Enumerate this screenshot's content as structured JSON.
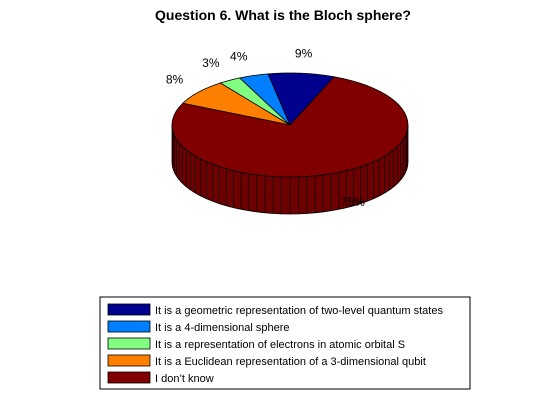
{
  "chart_data": {
    "type": "pie",
    "title": "Question 6. What is the Bloch sphere?",
    "style": "3d",
    "legend_position": "bottom",
    "slices": [
      {
        "label": "It is a geometric representation of two-level quantum states",
        "value": 9,
        "percent_label": "9%",
        "color": "#00008f"
      },
      {
        "label": "It is a 4-dimensional sphere",
        "value": 4,
        "percent_label": "4%",
        "color": "#0080ff"
      },
      {
        "label": "It is a representation of electrons in atomic orbital S",
        "value": 3,
        "percent_label": "3%",
        "color": "#80ff80"
      },
      {
        "label": "It is a Euclidean representation of a 3-dimensional qubit",
        "value": 8,
        "percent_label": "8%",
        "color": "#ff8000"
      },
      {
        "label": "I don’t know",
        "value": 75,
        "percent_label": "75%",
        "color": "#800000"
      }
    ]
  }
}
